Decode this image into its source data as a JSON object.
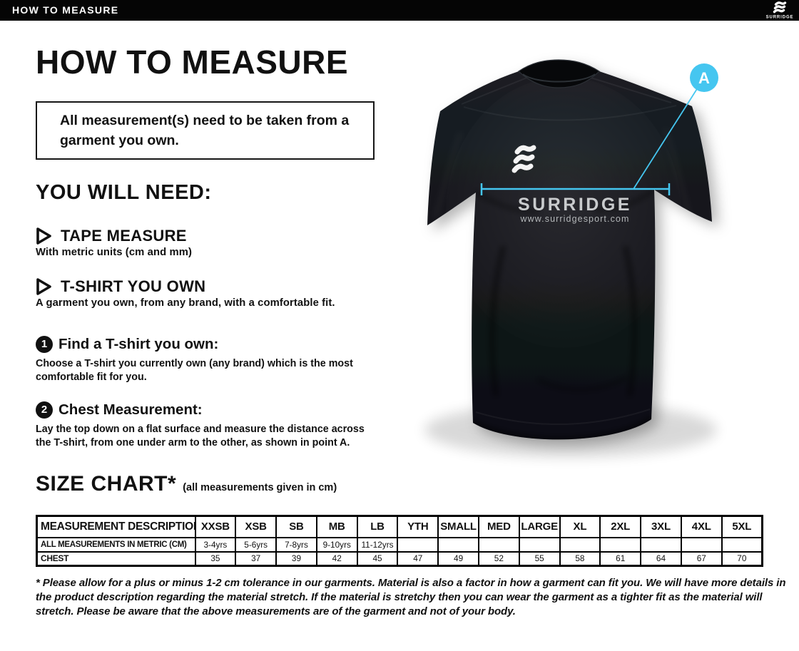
{
  "topbar": {
    "title": "HOW TO MEASURE",
    "logo_text": "SURRIDGE"
  },
  "intro": {
    "heading": "HOW TO MEASURE",
    "notice": "All measurement(s) need to be taken from a garment you own."
  },
  "you_will_need": {
    "heading": "YOU WILL NEED:",
    "items": [
      {
        "title": "TAPE MEASURE",
        "description": "With metric units (cm and mm)"
      },
      {
        "title": "T-SHIRT YOU OWN",
        "description": "A garment you own, from any brand, with a comfortable fit."
      }
    ]
  },
  "steps": [
    {
      "number": "1",
      "title": "Find a T-shirt you own:",
      "description": "Choose a T-shirt you currently own (any brand) which is the most comfortable fit for you."
    },
    {
      "number": "2",
      "title": "Chest Measurement:",
      "description": "Lay the top down on a flat surface and measure the distance across the T-shirt, from one under arm to the other, as shown in point A."
    }
  ],
  "size_chart": {
    "heading": "SIZE CHART*",
    "note": "(all measurements given in cm)",
    "columns": [
      "MEASUREMENT DESCRIPTION",
      "XXSB",
      "XSB",
      "SB",
      "MB",
      "LB",
      "YTH",
      "SMALL",
      "MED",
      "LARGE",
      "XL",
      "2XL",
      "3XL",
      "4XL",
      "5XL"
    ],
    "rows": [
      {
        "label": "ALL MEASUREMENTS IN METRIC (CM)",
        "values": [
          "3-4yrs",
          "5-6yrs",
          "7-8yrs",
          "9-10yrs",
          "11-12yrs",
          "",
          "",
          "",
          "",
          "",
          "",
          "",
          "",
          ""
        ]
      },
      {
        "label": "CHEST",
        "values": [
          "35",
          "37",
          "39",
          "42",
          "45",
          "47",
          "49",
          "52",
          "55",
          "58",
          "61",
          "64",
          "67",
          "70"
        ]
      }
    ]
  },
  "footnote": "* Please allow for a plus or minus 1-2 cm tolerance in our garments. Material is also a factor in how a garment can fit you. We will have more details in the product description regarding the material stretch.  If the material is stretchy then you can wear the garment as a tighter fit as the material will stretch.  Please be aware that the above measurements are of the garment and not of your body.",
  "shirt": {
    "brand": "SURRIDGE",
    "website": "www.surridgesport.com",
    "point_label": "A",
    "accent_color": "#45C6F0",
    "shirt_color": "#14171c"
  }
}
